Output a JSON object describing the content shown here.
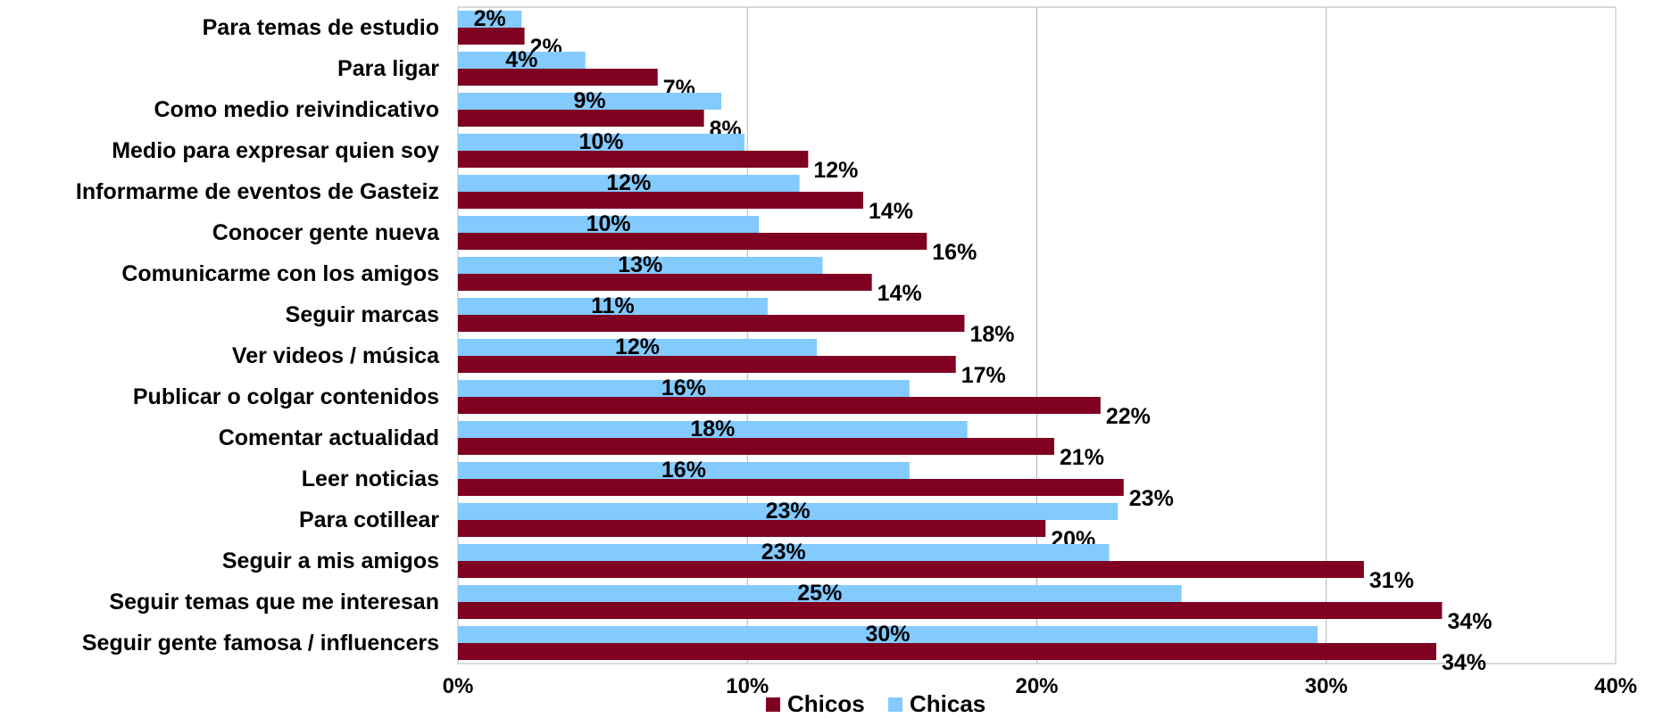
{
  "chart_data": {
    "type": "bar",
    "orientation": "horizontal",
    "categories": [
      "Para temas de estudio",
      "Para ligar",
      "Como medio reivindicativo",
      "Medio para expresar quien soy",
      "Informarme de eventos de Gasteiz",
      "Conocer gente nueva",
      "Comunicarme con los amigos",
      "Seguir marcas",
      "Ver videos / música",
      "Publicar o colgar contenidos",
      "Comentar actualidad",
      "Leer noticias",
      "Para cotillear",
      "Seguir a mis amigos",
      "Seguir temas que me interesan",
      "Seguir gente famosa / influencers"
    ],
    "series": [
      {
        "name": "Chicos",
        "color": "#7f0020",
        "values": [
          2.3,
          6.9,
          8.5,
          12.1,
          14.0,
          16.2,
          14.3,
          17.5,
          17.2,
          22.2,
          20.6,
          23.0,
          20.3,
          31.3,
          34.0,
          33.8
        ],
        "labels": [
          "2%",
          "7%",
          "8%",
          "12%",
          "14%",
          "16%",
          "14%",
          "18%",
          "17%",
          "22%",
          "21%",
          "23%",
          "20%",
          "31%",
          "34%",
          "34%"
        ]
      },
      {
        "name": "Chicas",
        "color": "#83caff",
        "values": [
          2.2,
          4.4,
          9.1,
          9.9,
          11.8,
          10.4,
          12.6,
          10.7,
          12.4,
          15.6,
          17.6,
          15.6,
          22.8,
          22.5,
          25.0,
          29.7
        ],
        "labels": [
          "2%",
          "4%",
          "9%",
          "10%",
          "12%",
          "10%",
          "13%",
          "11%",
          "12%",
          "16%",
          "18%",
          "16%",
          "23%",
          "23%",
          "25%",
          "30%"
        ]
      }
    ],
    "xlim": [
      0,
      40
    ],
    "xticks": [
      "0%",
      "10%",
      "20%",
      "30%",
      "40%"
    ],
    "grid": true,
    "legend": "bottom"
  }
}
